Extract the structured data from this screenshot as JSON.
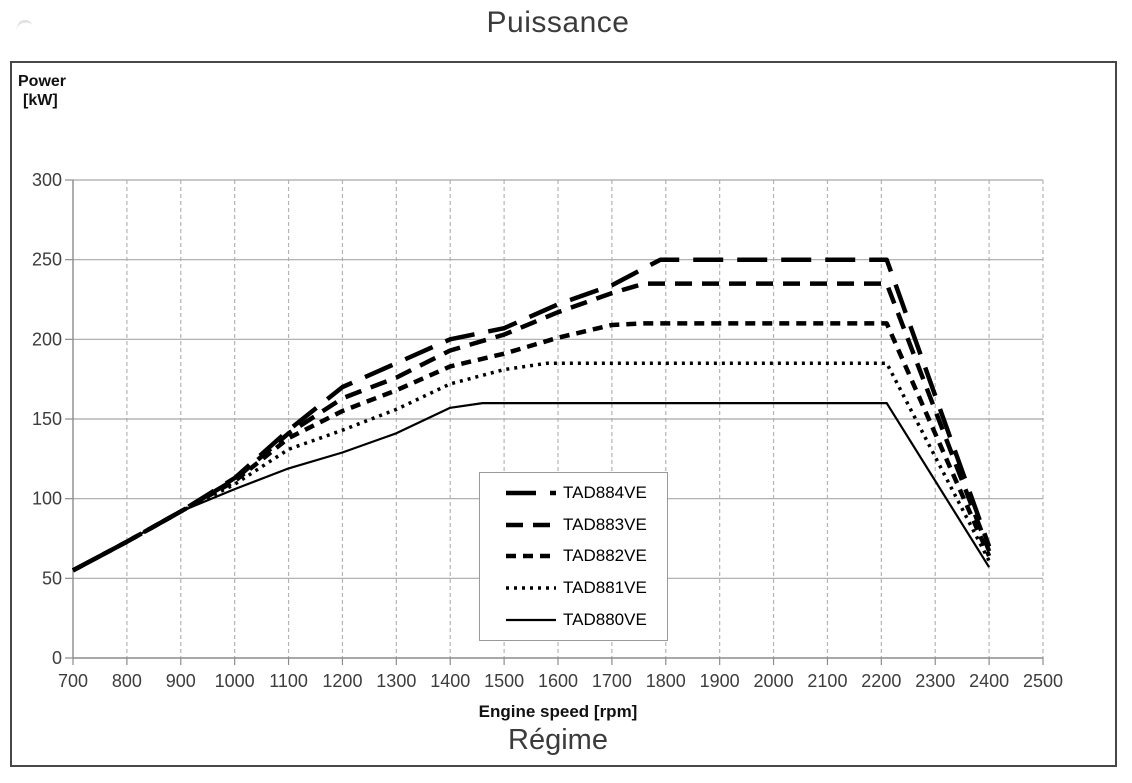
{
  "colors": {
    "line": "#000000",
    "grid_vertical": "#b4b4b4",
    "grid_horizontal": "#a8a8a8",
    "axis": "#8c8c8c",
    "frame": "#474747",
    "tick_text": "#3d3d3d",
    "title_text": "#3b3b3b"
  },
  "chart_data": {
    "type": "line",
    "title": "Puissance",
    "xlabel": "Engine speed [rpm]",
    "xlabel_secondary": "Régime",
    "ylabel": "Power [kW]",
    "ylabel_lines": [
      "Power",
      "[kW]"
    ],
    "xlim": [
      700,
      2500
    ],
    "ylim": [
      0,
      300
    ],
    "x_ticks": [
      700,
      800,
      900,
      1000,
      1100,
      1200,
      1300,
      1400,
      1500,
      1600,
      1700,
      1800,
      1900,
      2000,
      2100,
      2200,
      2300,
      2400,
      2500
    ],
    "y_ticks": [
      0,
      50,
      100,
      150,
      200,
      250,
      300
    ],
    "grid": {
      "vertical": "dashed",
      "horizontal": "solid"
    },
    "legend_position": "inside-bottom-center",
    "series": [
      {
        "name": "TAD884VE",
        "line_style": "long-dash",
        "line_width": 4.5,
        "points": [
          [
            700,
            55
          ],
          [
            800,
            73
          ],
          [
            900,
            92
          ],
          [
            1000,
            113
          ],
          [
            1100,
            143
          ],
          [
            1200,
            170
          ],
          [
            1300,
            185
          ],
          [
            1400,
            200
          ],
          [
            1500,
            207
          ],
          [
            1600,
            222
          ],
          [
            1700,
            234
          ],
          [
            1790,
            250
          ],
          [
            2210,
            250
          ],
          [
            2400,
            70
          ]
        ]
      },
      {
        "name": "TAD883VE",
        "line_style": "dash",
        "line_width": 4.5,
        "points": [
          [
            700,
            55
          ],
          [
            800,
            73
          ],
          [
            900,
            92
          ],
          [
            1000,
            112
          ],
          [
            1100,
            141
          ],
          [
            1200,
            163
          ],
          [
            1300,
            176
          ],
          [
            1400,
            193
          ],
          [
            1500,
            203
          ],
          [
            1600,
            217
          ],
          [
            1700,
            229
          ],
          [
            1760,
            235
          ],
          [
            2210,
            235
          ],
          [
            2400,
            67
          ]
        ]
      },
      {
        "name": "TAD882VE",
        "line_style": "short-dash",
        "line_width": 4.5,
        "points": [
          [
            700,
            55
          ],
          [
            800,
            73
          ],
          [
            900,
            92
          ],
          [
            1000,
            111
          ],
          [
            1100,
            138
          ],
          [
            1200,
            155
          ],
          [
            1300,
            168
          ],
          [
            1400,
            183
          ],
          [
            1500,
            191
          ],
          [
            1600,
            201
          ],
          [
            1700,
            209
          ],
          [
            1760,
            210
          ],
          [
            2210,
            210
          ],
          [
            2400,
            64
          ]
        ]
      },
      {
        "name": "TAD881VE",
        "line_style": "dotted",
        "line_width": 3.5,
        "points": [
          [
            700,
            55
          ],
          [
            800,
            73
          ],
          [
            900,
            92
          ],
          [
            1000,
            109
          ],
          [
            1100,
            131
          ],
          [
            1200,
            143
          ],
          [
            1300,
            156
          ],
          [
            1400,
            172
          ],
          [
            1500,
            181
          ],
          [
            1580,
            185
          ],
          [
            2210,
            185
          ],
          [
            2400,
            61
          ]
        ]
      },
      {
        "name": "TAD880VE",
        "line_style": "solid",
        "line_width": 2.2,
        "points": [
          [
            700,
            55
          ],
          [
            800,
            73
          ],
          [
            900,
            92
          ],
          [
            1000,
            106
          ],
          [
            1100,
            119
          ],
          [
            1200,
            129
          ],
          [
            1300,
            141
          ],
          [
            1400,
            157
          ],
          [
            1460,
            160
          ],
          [
            2210,
            160
          ],
          [
            2400,
            57
          ]
        ]
      }
    ]
  }
}
